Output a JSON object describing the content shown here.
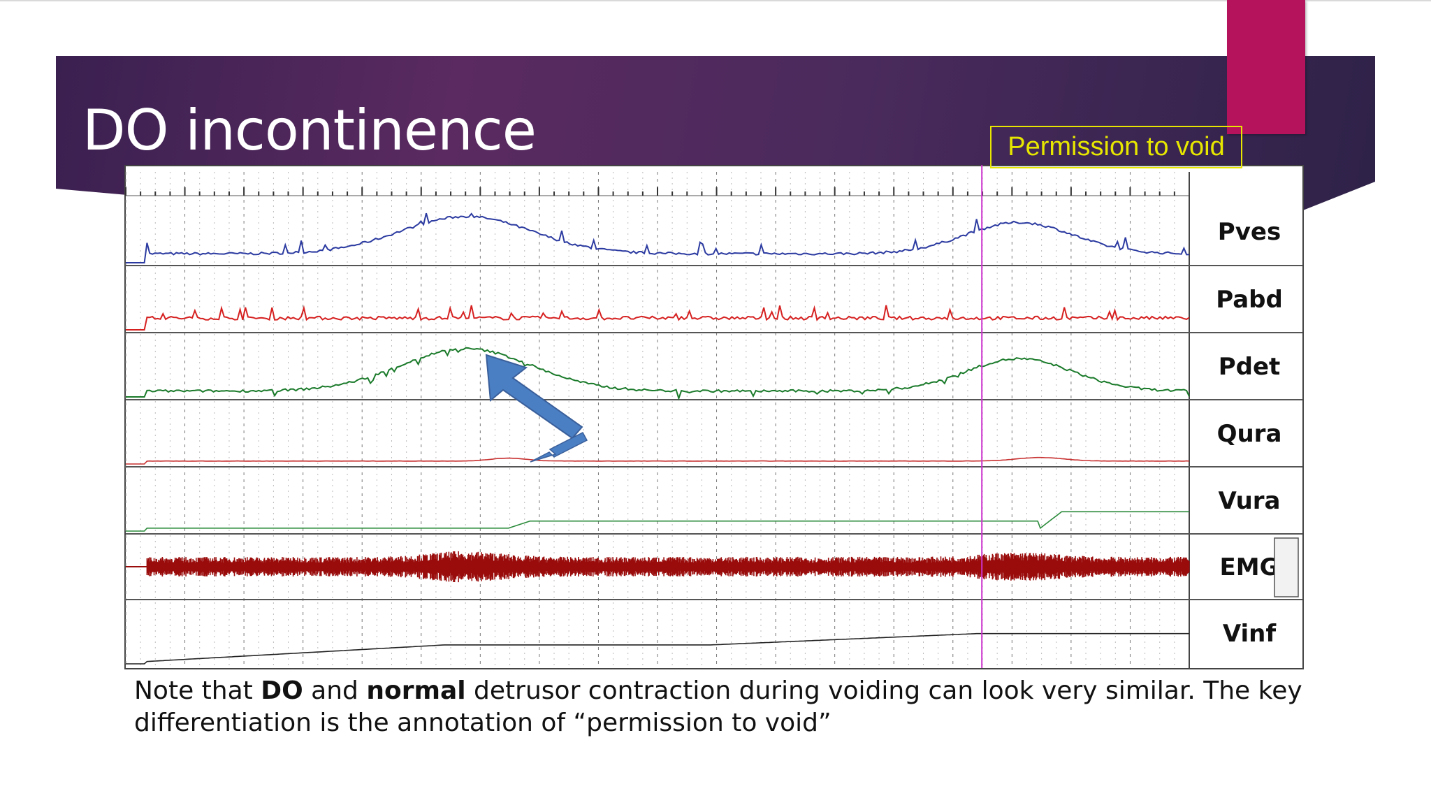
{
  "slide": {
    "title": "DO incontinence",
    "annotation": "Permission to void",
    "note": {
      "part1": "Note that ",
      "bold1": "DO",
      "part2": " and ",
      "bold2": "normal",
      "part3": " detrusor contraction during voiding can look very similar. The key differentiation is the annotation of “permission to void”"
    }
  },
  "colors": {
    "banner": "#4a2a5c",
    "accent": "#b5145c",
    "annotation": "#e6e600",
    "marker_line": "#cc33cc",
    "arrow": "#4a7fc4",
    "pves": "#2b3aa0",
    "pabd": "#d62020",
    "pdet": "#1a7a2a",
    "qura": "#c83030",
    "vura": "#2a8a3a",
    "emg": "#9a0c0c",
    "vinf": "#222222"
  },
  "chart_data": {
    "type": "line",
    "x_range": [
      0,
      100
    ],
    "permission_to_void_x": 80.5,
    "channels": [
      {
        "name": "Pves",
        "baseline": 0.15,
        "events": [
          [
            32,
            0.62,
            11
          ],
          [
            84,
            0.52,
            9
          ]
        ]
      },
      {
        "name": "Pabd",
        "baseline": 0.2,
        "events": []
      },
      {
        "name": "Pdet",
        "baseline": 0.1,
        "events": [
          [
            32,
            0.72,
            11
          ],
          [
            84,
            0.55,
            9
          ]
        ]
      },
      {
        "name": "Qura",
        "baseline": 0.05,
        "events": [
          [
            36,
            0.05,
            3
          ],
          [
            86,
            0.06,
            4
          ]
        ]
      },
      {
        "name": "Vura",
        "baseline": 0.05,
        "steps": [
          [
            36,
            0.12
          ],
          [
            86,
            0.28
          ]
        ]
      },
      {
        "name": "EMG",
        "baseline": 0.5,
        "amplitude": 0.3
      },
      {
        "name": "Vinf",
        "baseline": 0.0,
        "ramp": [
          [
            0,
            0.0
          ],
          [
            30,
            0.55
          ],
          [
            55,
            0.55
          ],
          [
            80,
            0.9
          ],
          [
            100,
            0.9
          ]
        ]
      }
    ]
  }
}
